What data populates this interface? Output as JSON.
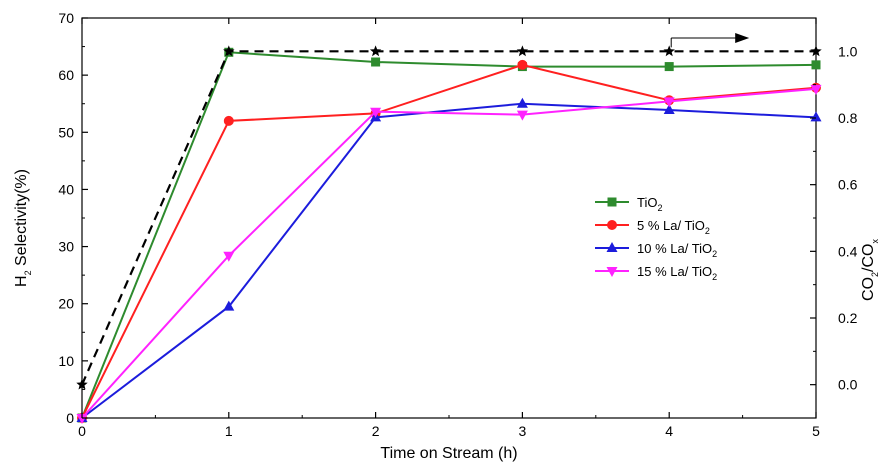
{
  "chart_data": {
    "type": "line",
    "xlabel": "Time on Stream (h)",
    "ylabel": {
      "main": "H",
      "sub": "2",
      "rest": " Selectivity(%)"
    },
    "y2label": {
      "a": "CO",
      "sub1": "2",
      "b": "/CO",
      "sub2": "x"
    },
    "xlim": [
      0,
      5
    ],
    "ylim": [
      0,
      70
    ],
    "y2lim": [
      -0.1,
      1.1
    ],
    "xticks": [
      0,
      1,
      2,
      3,
      4,
      5
    ],
    "yticks": [
      0,
      10,
      20,
      30,
      40,
      50,
      60,
      70
    ],
    "y2ticks": [
      "0.0",
      "0.2",
      "0.4",
      "0.6",
      "0.8",
      "1.0"
    ],
    "y2tick_values": [
      0,
      0.2,
      0.4,
      0.6,
      0.8,
      1.0
    ],
    "legend_position": "center-right",
    "series": [
      {
        "name": "TiO",
        "sub": "2",
        "color": "#2e8b2e",
        "marker": "square",
        "x": [
          0,
          1,
          2,
          3,
          4,
          5
        ],
        "y": [
          0,
          64,
          62.3,
          61.5,
          61.5,
          61.8
        ]
      },
      {
        "name": "5 % La/ TiO",
        "sub": "2",
        "color": "#ff2020",
        "marker": "circle",
        "x": [
          0,
          1,
          2,
          3,
          4,
          5
        ],
        "y": [
          0,
          52,
          53.3,
          61.8,
          55.6,
          57.8
        ]
      },
      {
        "name": "10 % La/ TiO",
        "sub": "2",
        "color": "#1c1cdc",
        "marker": "triangle-up",
        "x": [
          0,
          1,
          2,
          3,
          4,
          5
        ],
        "y": [
          0,
          19.5,
          52.6,
          55,
          53.9,
          52.6
        ]
      },
      {
        "name": "15 % La/ TiO",
        "sub": "2",
        "color": "#ff22ff",
        "marker": "triangle-down",
        "x": [
          0,
          1,
          2,
          3,
          4,
          5
        ],
        "y": [
          0,
          28.4,
          53.6,
          53.1,
          55.4,
          57.6
        ]
      }
    ],
    "secondary_series": {
      "color": "#000000",
      "marker": "star",
      "dash": true,
      "axis": "right",
      "x": [
        0,
        1,
        2,
        3,
        4,
        5
      ],
      "y": [
        0,
        1.0,
        1.0,
        1.0,
        1.0,
        1.0
      ]
    },
    "annotation": {
      "type": "arrow-right",
      "at_x": 4,
      "points_to": "right axis"
    }
  }
}
